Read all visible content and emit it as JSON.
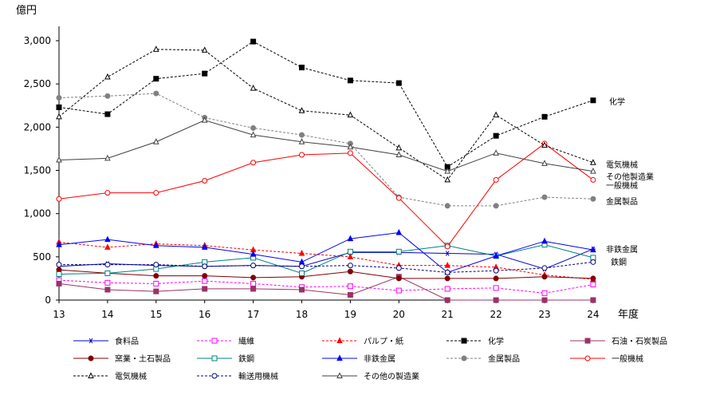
{
  "chart_data": {
    "type": "line",
    "ylabel": "億円",
    "xlabel": "年度",
    "x": [
      "13",
      "14",
      "15",
      "16",
      "17",
      "18",
      "19",
      "20",
      "21",
      "22",
      "23",
      "24"
    ],
    "ylim": [
      0,
      3250
    ],
    "yticks": [
      0,
      500,
      1000,
      1500,
      2000,
      2500,
      3000
    ],
    "ytick_labels": [
      "0",
      "500",
      "1,000",
      "1,500",
      "2,000",
      "2,500",
      "3,000"
    ],
    "grid": false,
    "legend_position": "bottom",
    "series": [
      {
        "name": "食料品",
        "color": "#0000cc",
        "dash": "solid",
        "marker": "asterisk",
        "end_label": "",
        "values": [
          390,
          420,
          400,
          390,
          400,
          390,
          550,
          550,
          540,
          530,
          360,
          590
        ]
      },
      {
        "name": "繊維",
        "color": "#ff00ff",
        "dash": "dash",
        "marker": "square-open",
        "end_label": "",
        "values": [
          230,
          200,
          190,
          220,
          190,
          150,
          160,
          110,
          130,
          140,
          80,
          180
        ]
      },
      {
        "name": "パルプ・紙",
        "color": "#ff0000",
        "dash": "dash",
        "marker": "triangle-filled",
        "end_label": "",
        "values": [
          670,
          610,
          650,
          630,
          580,
          540,
          500,
          400,
          400,
          380,
          290,
          240
        ]
      },
      {
        "name": "化学",
        "color": "#000000",
        "dash": "dash",
        "marker": "square-filled",
        "end_label": "化学",
        "values": [
          2230,
          2150,
          2560,
          2620,
          2990,
          2690,
          2540,
          2510,
          1540,
          1900,
          2120,
          2310
        ]
      },
      {
        "name": "石油・石炭製品",
        "color": "#993366",
        "dash": "solid",
        "marker": "square-filled",
        "end_label": "",
        "values": [
          190,
          120,
          100,
          130,
          130,
          120,
          60,
          270,
          0,
          0,
          0,
          0
        ]
      },
      {
        "name": "窯業・土石製品",
        "color": "#800000",
        "dash": "solid",
        "marker": "circle-filled",
        "end_label": "",
        "values": [
          350,
          310,
          280,
          280,
          260,
          270,
          330,
          250,
          250,
          250,
          270,
          250
        ]
      },
      {
        "name": "鉄鋼",
        "color": "#008080",
        "dash": "solid",
        "marker": "square-open",
        "end_label": "鉄鋼",
        "values": [
          300,
          310,
          360,
          440,
          490,
          310,
          560,
          560,
          630,
          510,
          640,
          490
        ]
      },
      {
        "name": "非鉄金属",
        "color": "#0000ff",
        "dash": "solid",
        "marker": "triangle-filled",
        "end_label": "非鉄金属",
        "values": [
          640,
          700,
          630,
          610,
          530,
          440,
          710,
          780,
          320,
          510,
          680,
          580
        ]
      },
      {
        "name": "金属製品",
        "color": "#808080",
        "dash": "dash",
        "marker": "circle-filled",
        "end_label": "金属製品",
        "values": [
          2340,
          2360,
          2390,
          2110,
          1990,
          1910,
          1810,
          1190,
          1090,
          1090,
          1190,
          1170
        ]
      },
      {
        "name": "一般機械",
        "color": "#ff0000",
        "dash": "solid",
        "marker": "circle-open",
        "end_label": "一般機械",
        "values": [
          1170,
          1240,
          1240,
          1380,
          1590,
          1680,
          1700,
          1180,
          620,
          1390,
          1810,
          1390
        ]
      },
      {
        "name": "電気機械",
        "color": "#000000",
        "dash": "dash",
        "marker": "triangle-open",
        "end_label": "電気機械",
        "values": [
          2120,
          2580,
          2900,
          2890,
          2450,
          2190,
          2140,
          1760,
          1390,
          2140,
          1790,
          1590
        ]
      },
      {
        "name": "輸送用機械",
        "color": "#000080",
        "dash": "dash",
        "marker": "circle-open",
        "end_label": "",
        "values": [
          410,
          410,
          410,
          390,
          400,
          390,
          400,
          370,
          320,
          340,
          370,
          440
        ]
      },
      {
        "name": "その他の製造業",
        "color": "#404040",
        "dash": "solid",
        "marker": "triangle-open",
        "end_label": "その他製造業",
        "values": [
          1620,
          1640,
          1830,
          2080,
          1910,
          1830,
          1770,
          1680,
          1490,
          1700,
          1580,
          1490
        ]
      }
    ]
  }
}
